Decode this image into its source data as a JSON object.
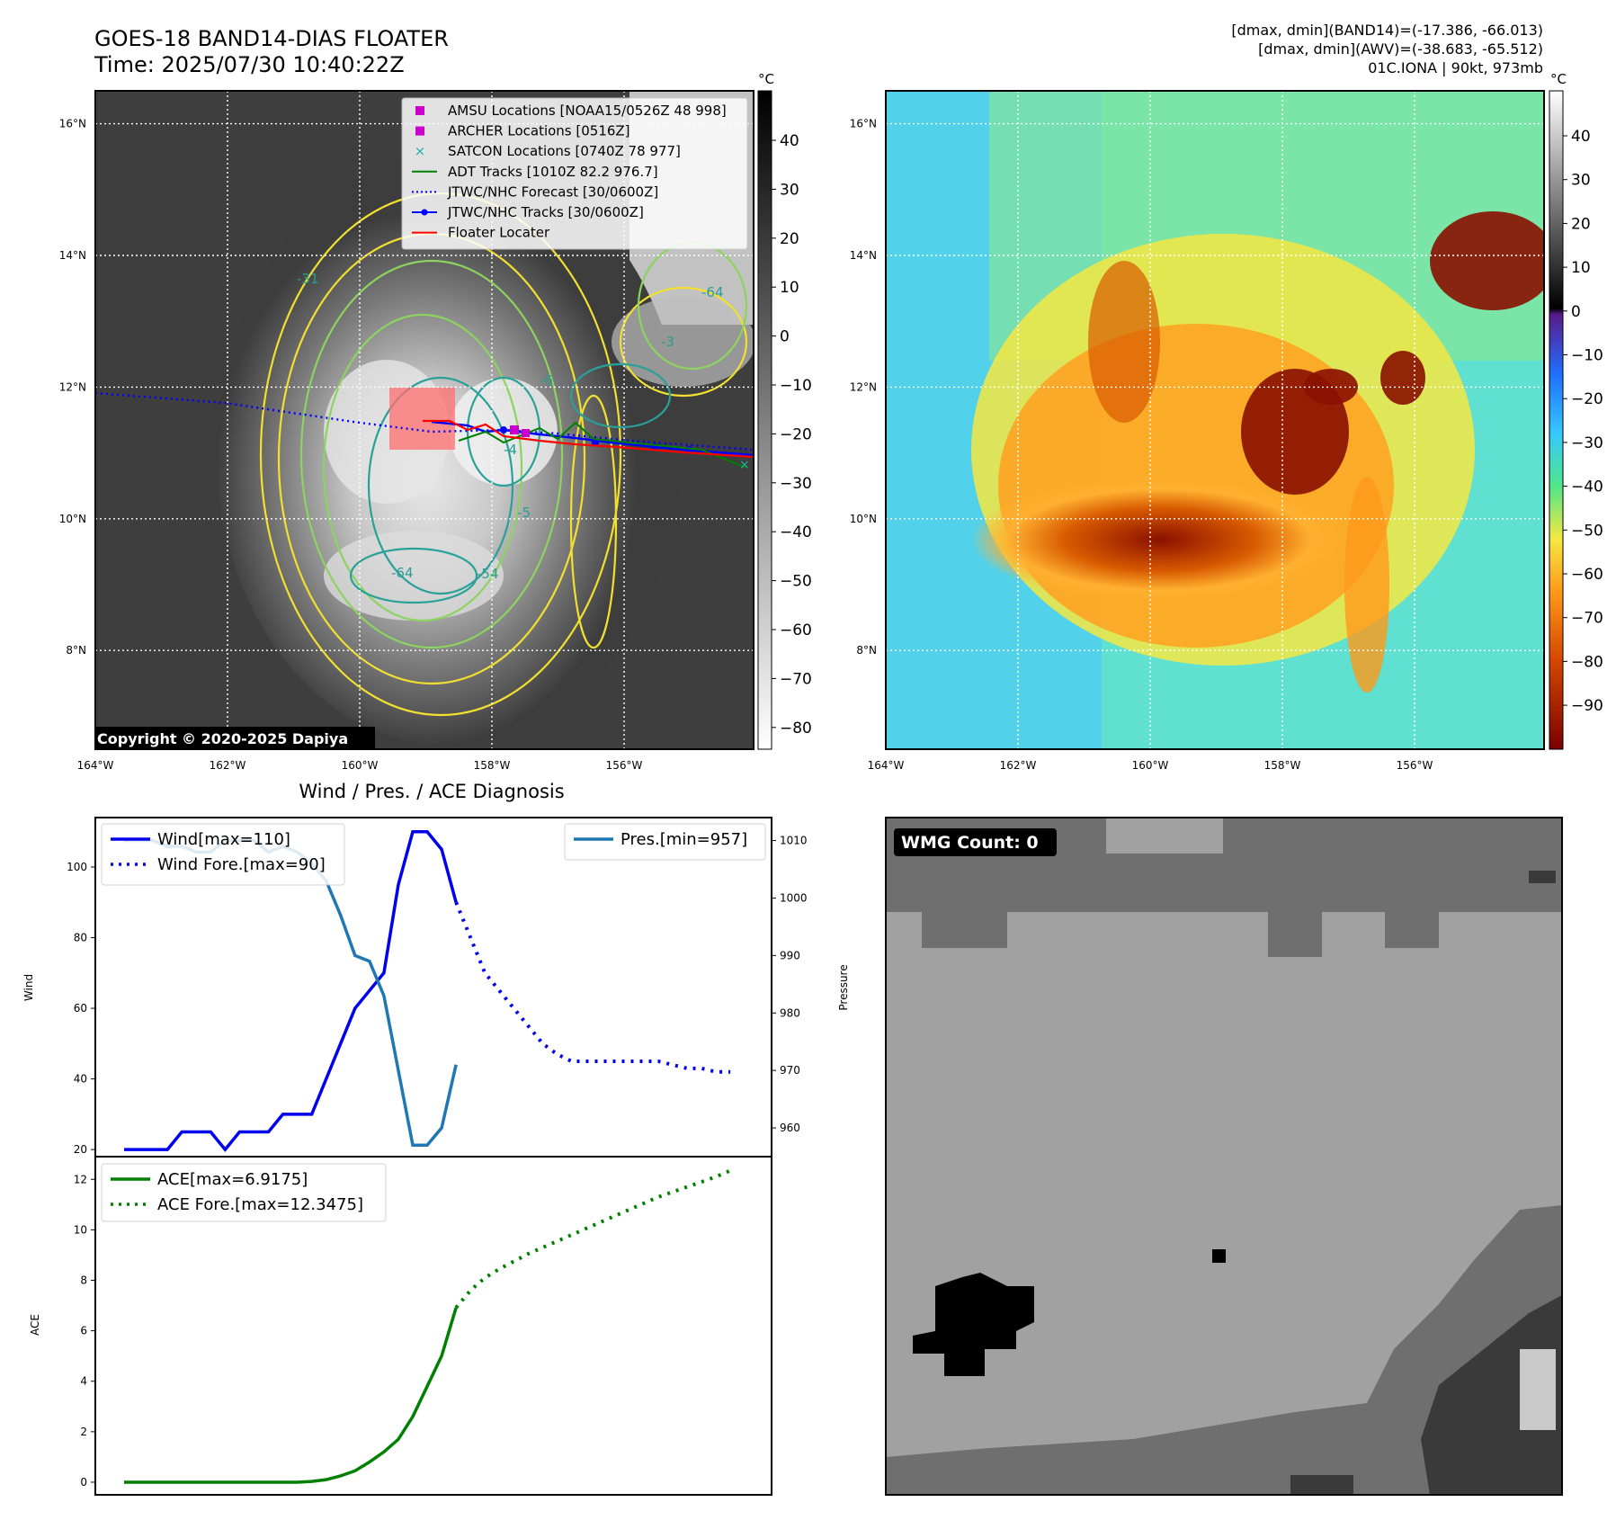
{
  "header": {
    "title_line1": "GOES-18 BAND14-DIAS FLOATER",
    "title_line2": "Time: 2025/07/30 10:40:22Z",
    "stats_line1": "[dmax, dmin](BAND14)=(-17.386, -66.013)",
    "stats_line2": "[dmax, dmin](AWV)=(-38.683, -65.512)",
    "stats_line3": "01C.IONA | 90kt, 973mb"
  },
  "map_axes": {
    "lat_labels": [
      "16°N",
      "14°N",
      "12°N",
      "10°N",
      "8°N"
    ],
    "lon_labels": [
      "164°W",
      "162°W",
      "160°W",
      "158°W",
      "156°W"
    ],
    "lat_values": [
      16,
      14,
      12,
      10,
      8
    ],
    "lon_values": [
      -164,
      -162,
      -160,
      -158,
      -156
    ]
  },
  "left_map": {
    "copyright": "Copyright © 2020-2025 Dapiya",
    "colorbar_unit": "°C",
    "colorbar_ticks": [
      "40",
      "30",
      "20",
      "10",
      "0",
      "−10",
      "−20",
      "−30",
      "−40",
      "−50",
      "−60",
      "−70",
      "−80"
    ],
    "contour_labels": [
      "-31",
      "-64",
      "-3",
      "-6",
      "-54",
      "-64",
      "-5",
      "-4"
    ],
    "legend": [
      {
        "label": "AMSU Locations [NOAA15/0526Z 48 998]",
        "marker": "square",
        "color": "#cc00cc"
      },
      {
        "label": "ARCHER Locations [0516Z]",
        "marker": "square",
        "color": "#cc00cc"
      },
      {
        "label": "SATCON Locations [0740Z 78 977]",
        "marker": "x",
        "color": "#20b2aa"
      },
      {
        "label": "ADT Tracks [1010Z 82.2 976.7]",
        "marker": "line",
        "color": "#008000"
      },
      {
        "label": "JTWC/NHC Forecast [30/0600Z]",
        "marker": "dotted",
        "color": "#0000ff"
      },
      {
        "label": "JTWC/NHC Tracks [30/0600Z]",
        "marker": "line-dot",
        "color": "#0000ff"
      },
      {
        "label": "Floater Locater",
        "marker": "line",
        "color": "#ff0000"
      }
    ]
  },
  "right_map": {
    "colorbar_unit": "°C",
    "colorbar_ticks": [
      "40",
      "30",
      "20",
      "10",
      "0",
      "−10",
      "−20",
      "−30",
      "−40",
      "−50",
      "−60",
      "−70",
      "−80",
      "−90"
    ]
  },
  "wmg_panel": {
    "badge": "WMG Count: 0"
  },
  "chart_data": [
    {
      "type": "line",
      "title": "Wind / Pres. / ACE Diagnosis",
      "ylabel": "Wind",
      "y2label": "Pressure",
      "ylim": [
        18,
        114
      ],
      "y2lim": [
        955,
        1014
      ],
      "yticks": [
        "20",
        "40",
        "60",
        "80",
        "100"
      ],
      "y2ticks": [
        "960",
        "970",
        "980",
        "990",
        "1000",
        "1010"
      ],
      "legend_left": [
        "Wind[max=110]",
        "Wind Fore.[max=90]"
      ],
      "legend_right": [
        "Pres.[min=957]"
      ],
      "series": [
        {
          "name": "Wind[max=110]",
          "color": "#0000ee",
          "style": "solid",
          "axis": "left",
          "x": [
            0,
            1,
            2,
            3,
            4,
            5,
            6,
            7,
            8,
            9,
            10,
            11,
            12,
            13,
            14,
            15,
            16,
            17,
            18,
            19,
            20,
            21,
            22,
            23
          ],
          "values": [
            20,
            20,
            20,
            20,
            25,
            25,
            25,
            20,
            25,
            25,
            25,
            30,
            30,
            30,
            40,
            50,
            60,
            65,
            70,
            95,
            110,
            110,
            105,
            90
          ]
        },
        {
          "name": "Wind Fore.[max=90]",
          "color": "#0000ee",
          "style": "dotted",
          "axis": "left",
          "x": [
            23,
            24,
            25,
            26,
            27,
            28,
            29,
            30,
            31,
            32,
            33,
            34,
            35,
            36,
            37,
            38,
            39,
            40,
            41,
            42
          ],
          "values": [
            90,
            80,
            70,
            65,
            60,
            55,
            50,
            47,
            45,
            45,
            45,
            45,
            45,
            45,
            45,
            44,
            43,
            43,
            42,
            42
          ]
        },
        {
          "name": "Pres.[min=957]",
          "color": "#1f77b4",
          "style": "solid",
          "axis": "right",
          "x": [
            0,
            1,
            2,
            3,
            4,
            5,
            6,
            7,
            8,
            9,
            10,
            11,
            12,
            13,
            14,
            15,
            16,
            17,
            18,
            19,
            20,
            21,
            22,
            23
          ],
          "values": [
            1010,
            1010,
            1010,
            1009,
            1009,
            1008,
            1008,
            1010,
            1010,
            1010,
            1008,
            1009,
            1008,
            1006,
            1003,
            997,
            990,
            989,
            983,
            970,
            957,
            957,
            960,
            971
          ]
        }
      ]
    },
    {
      "type": "line",
      "ylabel": "ACE",
      "ylim": [
        -0.5,
        12.9
      ],
      "yticks": [
        "0",
        "2",
        "4",
        "6",
        "8",
        "10",
        "12"
      ],
      "legend": [
        "ACE[max=6.9175]",
        "ACE Fore.[max=12.3475]"
      ],
      "series": [
        {
          "name": "ACE[max=6.9175]",
          "color": "#008000",
          "style": "solid",
          "x": [
            0,
            1,
            2,
            3,
            4,
            5,
            6,
            7,
            8,
            9,
            10,
            11,
            12,
            13,
            14,
            15,
            16,
            17,
            18,
            19,
            20,
            21,
            22,
            23
          ],
          "values": [
            0,
            0,
            0,
            0,
            0,
            0,
            0,
            0,
            0,
            0,
            0,
            0,
            0,
            0.03,
            0.1,
            0.25,
            0.45,
            0.8,
            1.2,
            1.7,
            2.6,
            3.8,
            5.0,
            6.9175
          ]
        },
        {
          "name": "ACE Fore.[max=12.3475]",
          "color": "#008000",
          "style": "dotted",
          "x": [
            23,
            24,
            25,
            26,
            27,
            28,
            29,
            30,
            31,
            32,
            33,
            34,
            35,
            36,
            37,
            38,
            39,
            40,
            41,
            42
          ],
          "values": [
            6.9175,
            7.6,
            8.1,
            8.45,
            8.75,
            9.05,
            9.3,
            9.55,
            9.8,
            10.05,
            10.3,
            10.55,
            10.8,
            11.05,
            11.3,
            11.5,
            11.7,
            11.9,
            12.1,
            12.3475
          ]
        }
      ]
    }
  ]
}
